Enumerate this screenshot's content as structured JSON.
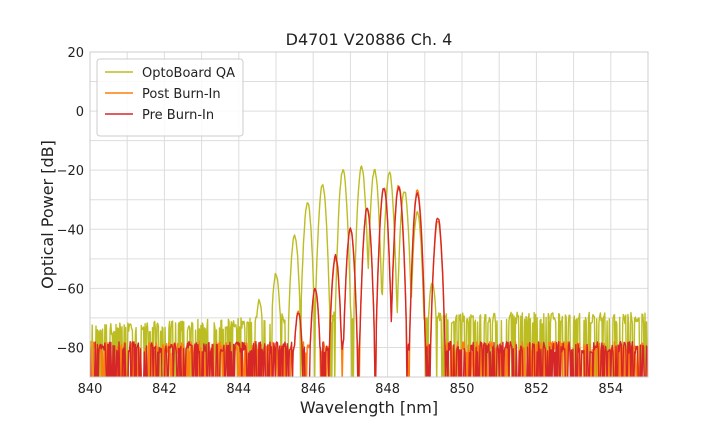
{
  "chart_data": {
    "type": "line",
    "title": "D4701 V20886 Ch. 4",
    "xlabel": "Wavelength [nm]",
    "ylabel": "Optical Power [dB]",
    "xlim": [
      840,
      855
    ],
    "ylim": [
      -90,
      20
    ],
    "xticks": [
      840,
      842,
      844,
      846,
      848,
      850,
      852,
      854
    ],
    "yticks": [
      -80,
      -60,
      -40,
      -20,
      0,
      20
    ],
    "grid": true,
    "legend_position": "top-left",
    "series": [
      {
        "name": "OptoBoard QA",
        "color": "#bcbd22",
        "noise_floor": [
          [
            840,
            -74
          ],
          [
            844,
            -72
          ],
          [
            845,
            -70
          ]
        ],
        "peaks": [
          {
            "x": 844.55,
            "y": -64
          },
          {
            "x": 845.0,
            "y": -55
          },
          {
            "x": 845.5,
            "y": -42
          },
          {
            "x": 845.85,
            "y": -31
          },
          {
            "x": 846.25,
            "y": -25
          },
          {
            "x": 846.8,
            "y": -20
          },
          {
            "x": 847.3,
            "y": -19
          },
          {
            "x": 847.65,
            "y": -20
          },
          {
            "x": 848.05,
            "y": -21
          },
          {
            "x": 848.45,
            "y": -27
          },
          {
            "x": 848.8,
            "y": -34
          },
          {
            "x": 849.2,
            "y": -58
          }
        ],
        "cutoff_x": 849.3
      },
      {
        "name": "Post Burn-In",
        "color": "#ff7f0e",
        "noise_floor": [
          [
            840,
            -80
          ],
          [
            855,
            -80
          ]
        ],
        "peaks": [
          {
            "x": 845.6,
            "y": -68
          },
          {
            "x": 846.05,
            "y": -60
          },
          {
            "x": 846.6,
            "y": -50
          },
          {
            "x": 847.0,
            "y": -40
          },
          {
            "x": 847.45,
            "y": -33
          },
          {
            "x": 847.9,
            "y": -26
          },
          {
            "x": 848.3,
            "y": -25
          },
          {
            "x": 848.8,
            "y": -27
          },
          {
            "x": 849.35,
            "y": -37
          }
        ],
        "cutoff_x": 849.6
      },
      {
        "name": "Pre Burn-In",
        "color": "#d62728",
        "noise_floor": [
          [
            840,
            -80
          ],
          [
            855,
            -80
          ]
        ],
        "peaks": [
          {
            "x": 845.6,
            "y": -68
          },
          {
            "x": 846.05,
            "y": -60
          },
          {
            "x": 846.6,
            "y": -49
          },
          {
            "x": 847.0,
            "y": -40
          },
          {
            "x": 847.45,
            "y": -33
          },
          {
            "x": 847.9,
            "y": -26
          },
          {
            "x": 848.3,
            "y": -26
          },
          {
            "x": 848.8,
            "y": -28
          },
          {
            "x": 849.35,
            "y": -36
          }
        ],
        "cutoff_x": 849.6
      }
    ]
  }
}
